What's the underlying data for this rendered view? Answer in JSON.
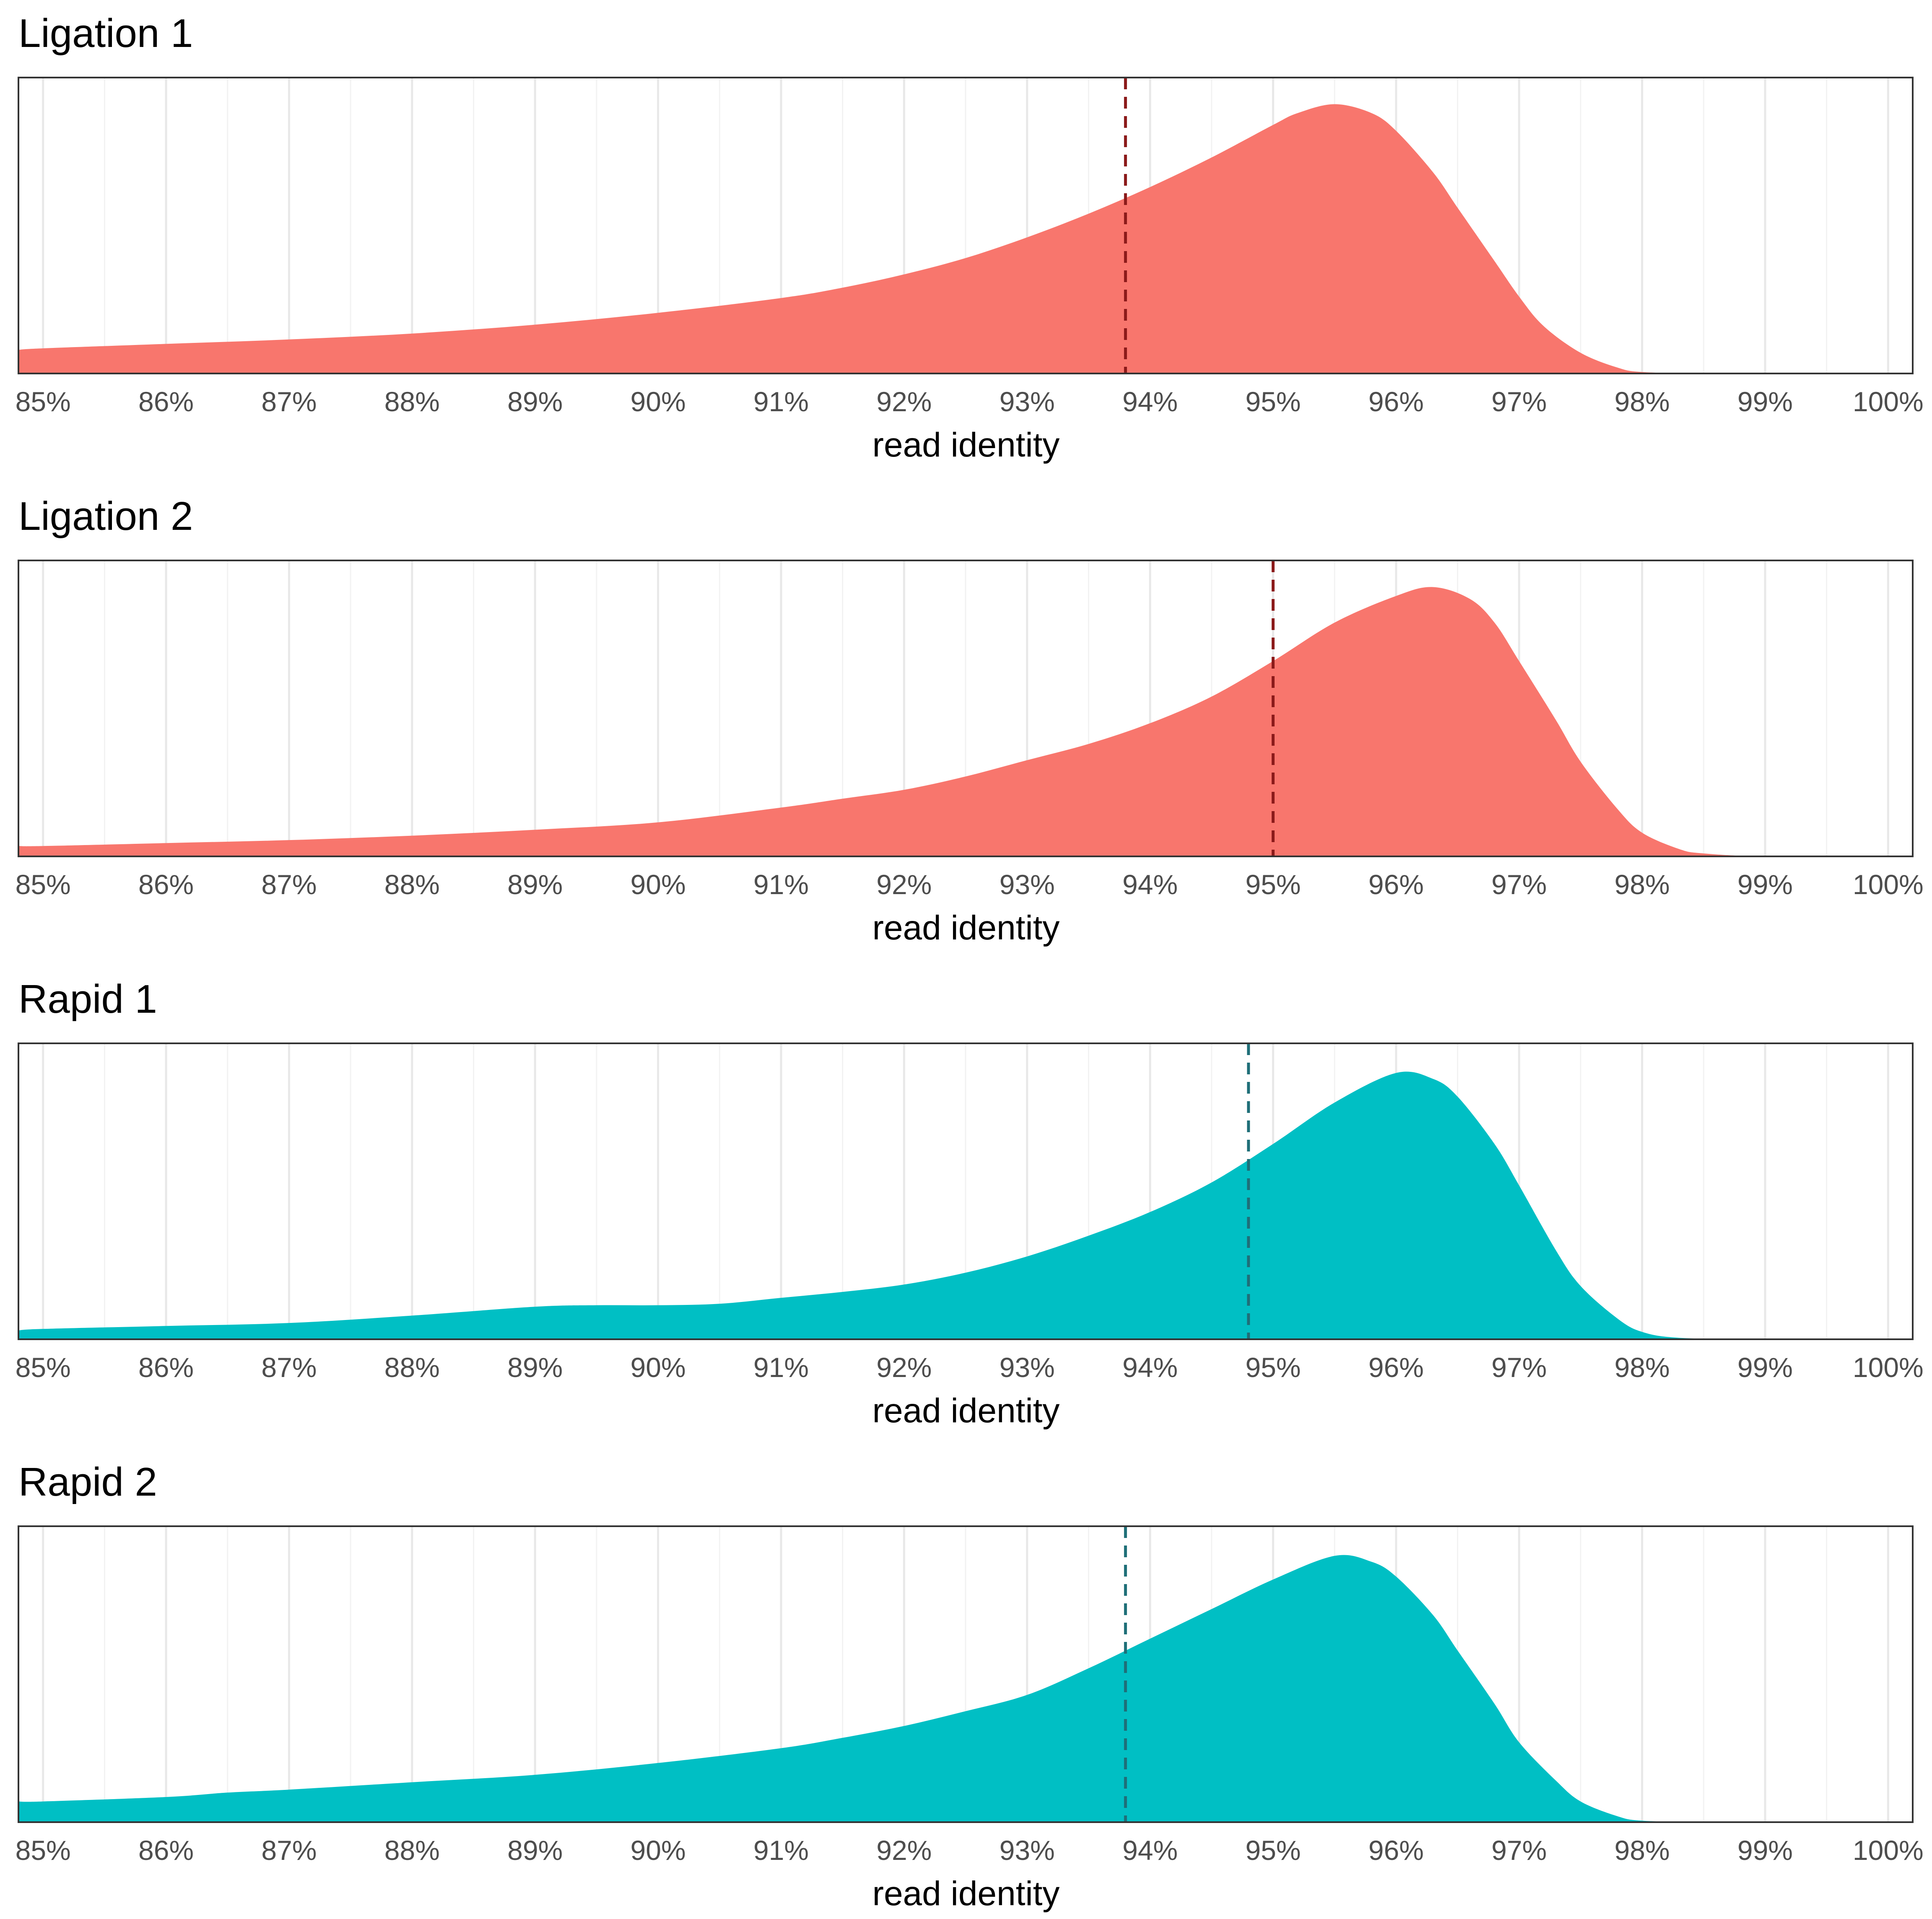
{
  "colors": {
    "ligation_fill": "#F8766D",
    "rapid_fill": "#00BFC4",
    "ligation_line": "#8B1A1A",
    "rapid_line": "#1F6F78",
    "grid_major": "#E8E8E8",
    "grid_minor": "#F2F2F2",
    "panel_border": "#333333"
  },
  "chart_data": [
    {
      "type": "area",
      "title": "Ligation 1",
      "xlabel": "read identity",
      "ylabel": "",
      "xlim": [
        84.8,
        100.2
      ],
      "x_ticks": [
        85,
        86,
        87,
        88,
        89,
        90,
        91,
        92,
        93,
        94,
        95,
        96,
        97,
        98,
        99,
        100
      ],
      "x_tick_labels": [
        "85%",
        "86%",
        "87%",
        "88%",
        "89%",
        "90%",
        "91%",
        "92%",
        "93%",
        "94%",
        "95%",
        "96%",
        "97%",
        "98%",
        "99%",
        "100%"
      ],
      "grid": "vertical",
      "fill_color": "#F8766D",
      "line_color": "#8B1A1A",
      "reference_line_x": 93.8,
      "density": {
        "x": [
          84.8,
          85,
          86,
          87,
          88,
          89,
          90,
          91,
          91.5,
          92,
          92.5,
          93,
          93.5,
          94,
          94.5,
          95,
          95.2,
          95.5,
          95.8,
          96,
          96.3,
          96.5,
          96.8,
          97,
          97.2,
          97.5,
          97.8,
          98,
          98.5,
          99,
          100,
          100.2
        ],
        "y": [
          0.08,
          0.085,
          0.1,
          0.115,
          0.135,
          0.165,
          0.205,
          0.255,
          0.29,
          0.335,
          0.39,
          0.46,
          0.54,
          0.63,
          0.73,
          0.84,
          0.88,
          0.91,
          0.88,
          0.82,
          0.68,
          0.56,
          0.38,
          0.26,
          0.16,
          0.07,
          0.02,
          0.005,
          0,
          0,
          0,
          0
        ]
      }
    },
    {
      "type": "area",
      "title": "Ligation 2",
      "xlabel": "read identity",
      "ylabel": "",
      "xlim": [
        84.8,
        100.2
      ],
      "x_ticks": [
        85,
        86,
        87,
        88,
        89,
        90,
        91,
        92,
        93,
        94,
        95,
        96,
        97,
        98,
        99,
        100
      ],
      "x_tick_labels": [
        "85%",
        "86%",
        "87%",
        "88%",
        "89%",
        "90%",
        "91%",
        "92%",
        "93%",
        "94%",
        "95%",
        "96%",
        "97%",
        "98%",
        "99%",
        "100%"
      ],
      "grid": "vertical",
      "fill_color": "#F8766D",
      "line_color": "#8B1A1A",
      "reference_line_x": 95.0,
      "density": {
        "x": [
          84.8,
          85,
          86,
          87,
          88,
          89,
          90,
          91,
          91.5,
          92,
          92.5,
          93,
          93.5,
          94,
          94.5,
          95,
          95.5,
          96,
          96.3,
          96.6,
          96.8,
          97,
          97.3,
          97.5,
          97.8,
          98,
          98.3,
          98.5,
          99,
          100,
          100.2
        ],
        "y": [
          0.035,
          0.035,
          0.045,
          0.055,
          0.07,
          0.09,
          0.115,
          0.165,
          0.195,
          0.225,
          0.27,
          0.325,
          0.38,
          0.45,
          0.54,
          0.66,
          0.79,
          0.88,
          0.91,
          0.87,
          0.79,
          0.66,
          0.46,
          0.32,
          0.16,
          0.08,
          0.025,
          0.01,
          0,
          0,
          0
        ]
      }
    },
    {
      "type": "area",
      "title": "Rapid 1",
      "xlabel": "read identity",
      "ylabel": "",
      "xlim": [
        84.8,
        100.2
      ],
      "x_ticks": [
        85,
        86,
        87,
        88,
        89,
        90,
        91,
        92,
        93,
        94,
        95,
        96,
        97,
        98,
        99,
        100
      ],
      "x_tick_labels": [
        "85%",
        "86%",
        "87%",
        "88%",
        "89%",
        "90%",
        "91%",
        "92%",
        "93%",
        "94%",
        "95%",
        "96%",
        "97%",
        "98%",
        "99%",
        "100%"
      ],
      "grid": "vertical",
      "fill_color": "#00BFC4",
      "line_color": "#1F6F78",
      "reference_line_x": 94.8,
      "density": {
        "x": [
          84.8,
          85,
          86,
          87,
          88,
          89,
          89.5,
          90,
          90.5,
          91,
          91.5,
          92,
          92.5,
          93,
          93.5,
          94,
          94.5,
          95,
          95.5,
          96,
          96.3,
          96.5,
          96.8,
          97,
          97.3,
          97.5,
          97.8,
          98,
          98.3,
          99,
          100,
          100.2
        ],
        "y": [
          0.03,
          0.035,
          0.045,
          0.055,
          0.08,
          0.11,
          0.115,
          0.115,
          0.12,
          0.14,
          0.16,
          0.185,
          0.225,
          0.28,
          0.35,
          0.43,
          0.53,
          0.66,
          0.8,
          0.9,
          0.88,
          0.82,
          0.66,
          0.52,
          0.3,
          0.18,
          0.07,
          0.025,
          0.005,
          0,
          0,
          0
        ]
      }
    },
    {
      "type": "area",
      "title": "Rapid 2",
      "xlabel": "read identity",
      "ylabel": "",
      "xlim": [
        84.8,
        100.2
      ],
      "x_ticks": [
        85,
        86,
        87,
        88,
        89,
        90,
        91,
        92,
        93,
        94,
        95,
        96,
        97,
        98,
        99,
        100
      ],
      "x_tick_labels": [
        "85%",
        "86%",
        "87%",
        "88%",
        "89%",
        "90%",
        "91%",
        "92%",
        "93%",
        "94%",
        "95%",
        "96%",
        "97%",
        "98%",
        "99%",
        "100%"
      ],
      "grid": "vertical",
      "fill_color": "#00BFC4",
      "line_color": "#1F6F78",
      "reference_line_x": 93.8,
      "density": {
        "x": [
          84.8,
          85,
          86,
          86.5,
          87,
          88,
          89,
          90,
          91,
          91.5,
          92,
          92.5,
          93,
          93.5,
          94,
          94.5,
          95,
          95.5,
          95.8,
          96,
          96.3,
          96.5,
          96.8,
          97,
          97.3,
          97.5,
          97.8,
          98,
          98.5,
          99,
          100,
          100.2
        ],
        "y": [
          0.07,
          0.07,
          0.085,
          0.1,
          0.11,
          0.135,
          0.16,
          0.2,
          0.25,
          0.285,
          0.325,
          0.375,
          0.43,
          0.52,
          0.62,
          0.72,
          0.82,
          0.9,
          0.88,
          0.83,
          0.7,
          0.58,
          0.4,
          0.27,
          0.14,
          0.07,
          0.02,
          0.005,
          0,
          0,
          0,
          0
        ]
      }
    }
  ]
}
